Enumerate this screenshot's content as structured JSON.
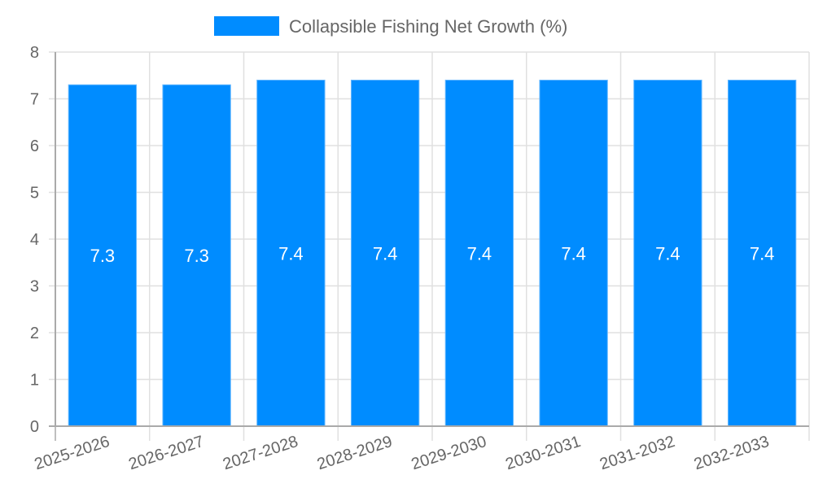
{
  "chart_data": {
    "type": "bar",
    "title": "",
    "xlabel": "",
    "ylabel": "",
    "categories": [
      "2025-2026",
      "2026-2027",
      "2027-2028",
      "2028-2029",
      "2029-2030",
      "2030-2031",
      "2031-2032",
      "2032-2033"
    ],
    "series": [
      {
        "name": "Collapsible Fishing Net Growth (%)",
        "values": [
          7.3,
          7.3,
          7.4,
          7.4,
          7.4,
          7.4,
          7.4,
          7.4
        ],
        "color": "#008cff"
      }
    ],
    "ylim": [
      0,
      8
    ],
    "yticks": [
      0,
      1,
      2,
      3,
      4,
      5,
      6,
      7,
      8
    ],
    "grid": true,
    "legend_position": "top",
    "data_labels": true
  },
  "legend": {
    "label": "Collapsible Fishing Net Growth (%)",
    "color": "#008cff"
  },
  "colors": {
    "bar": "#008cff",
    "grid": "#e0e0e0",
    "axis": "#aaaaaa",
    "text": "#666666"
  }
}
